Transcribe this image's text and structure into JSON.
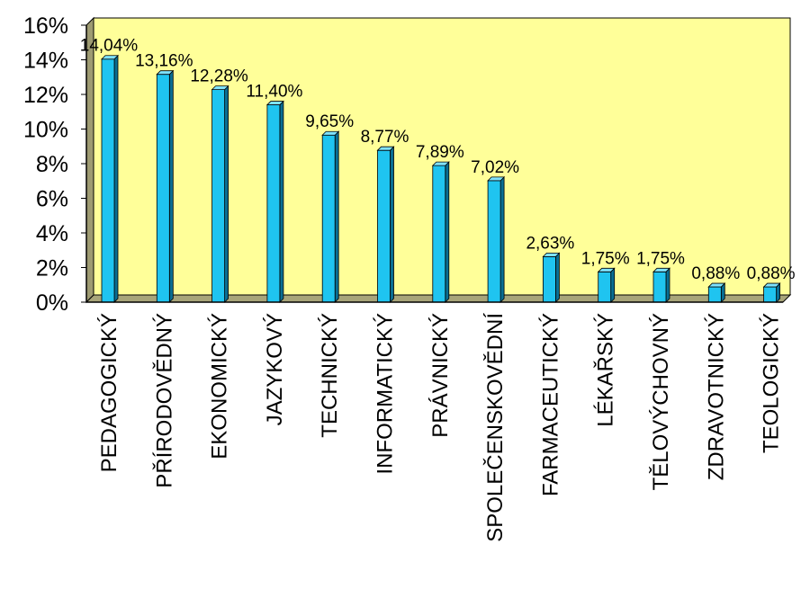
{
  "chart_data": {
    "type": "bar",
    "categories": [
      "PEDAGOGICKÝ",
      "PŘÍRODOVĚDNÝ",
      "EKONOMICKÝ",
      "JAZYKOVÝ",
      "TECHNICKÝ",
      "INFORMATICKÝ",
      "PRÁVNICKÝ",
      "SPOLEČENSKOVĚDNÍ",
      "FARMACEUTICKÝ",
      "LÉKAŘSKÝ",
      "TĚLOVÝCHOVNÝ",
      "ZDRAVOTNICKÝ",
      "TEOLOGICKÝ"
    ],
    "values": [
      14.04,
      13.16,
      12.28,
      11.4,
      9.65,
      8.77,
      7.89,
      7.02,
      2.63,
      1.75,
      1.75,
      0.88,
      0.88
    ],
    "data_labels": [
      "14,04%",
      "13,16%",
      "12,28%",
      "11,40%",
      "9,65%",
      "8,77%",
      "7,89%",
      "7,02%",
      "2,63%",
      "1,75%",
      "1,75%",
      "0,88%",
      "0,88%"
    ],
    "yticks": [
      "0%",
      "2%",
      "4%",
      "6%",
      "8%",
      "10%",
      "12%",
      "14%",
      "16%"
    ],
    "ylim": [
      0,
      16
    ],
    "grid": false,
    "legend": "none",
    "colors": {
      "plot_background": "#ffff99",
      "wall_side": "#9e9b72",
      "floor": "#a8a57a",
      "bar_front": "#1fc4f0",
      "bar_side": "#0a6e93",
      "bar_top": "#7fe3ff",
      "axis": "#000000"
    }
  }
}
